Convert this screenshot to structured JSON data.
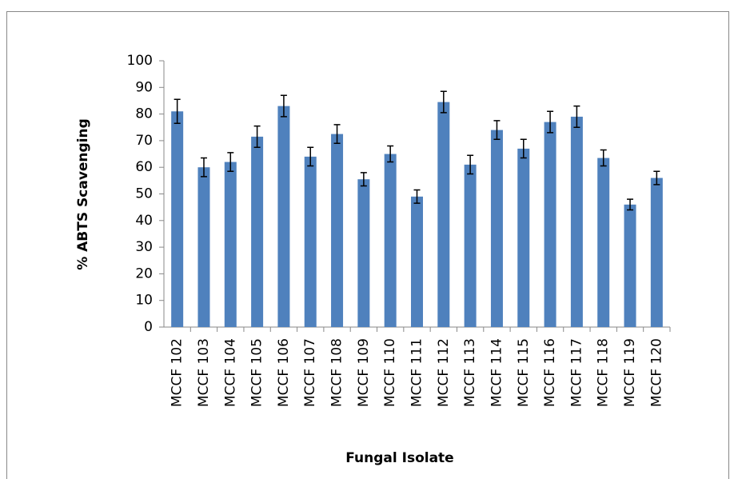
{
  "chart_data": {
    "type": "bar",
    "x_label": "Fungal Isolate",
    "y_label": "% ABTS Scavenging",
    "categories": [
      "MCCF 102",
      "MCCF 103",
      "MCCF 104",
      "MCCF 105",
      "MCCF 106",
      "MCCF 107",
      "MCCF 108",
      "MCCF 109",
      "MCCF 110",
      "MCCF 111",
      "MCCF 112",
      "MCCF 113",
      "MCCF 114",
      "MCCF 115",
      "MCCF 116",
      "MCCF 117",
      "MCCF 118",
      "MCCF 119",
      "MCCF 120"
    ],
    "values": [
      81,
      60,
      62,
      71.5,
      83,
      64,
      72.5,
      55.5,
      65,
      49,
      84.5,
      61,
      74,
      67,
      77,
      79,
      63.5,
      46,
      56
    ],
    "errors": [
      4.5,
      3.5,
      3.5,
      4,
      4,
      3.5,
      3.5,
      2.5,
      3,
      2.5,
      4,
      3.5,
      3.5,
      3.5,
      4,
      4,
      3,
      2,
      2.5
    ],
    "color": "#4f81bd",
    "ylim": [
      0,
      100
    ],
    "yticks": [
      0,
      10,
      20,
      30,
      40,
      50,
      60,
      70,
      80,
      90,
      100
    ],
    "grid": false
  }
}
